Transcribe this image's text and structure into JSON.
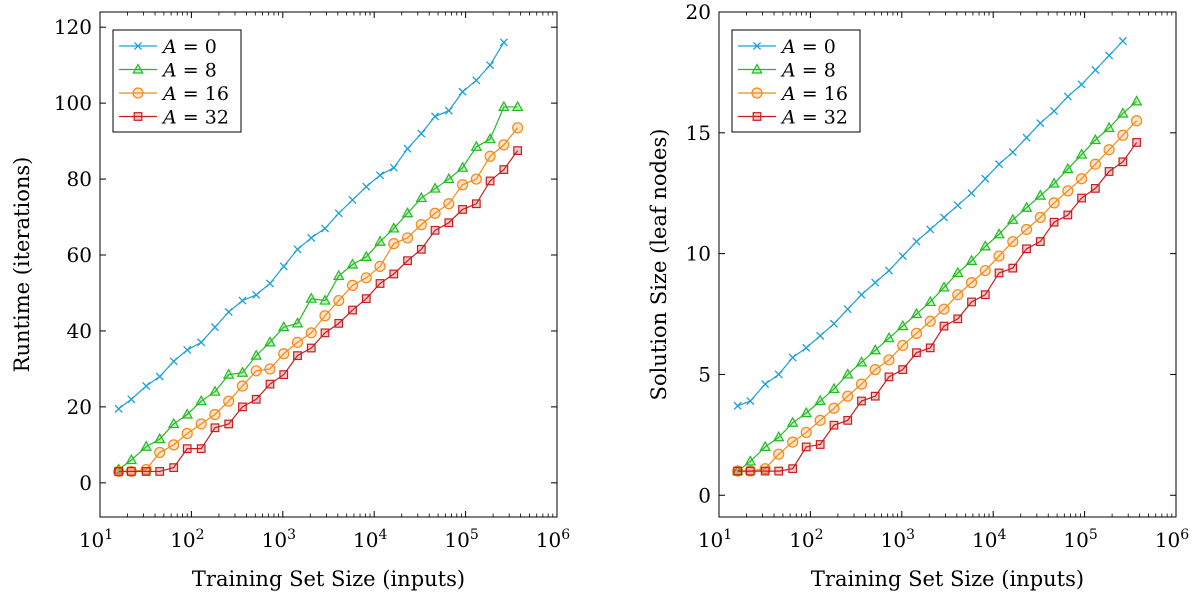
{
  "chart_data": [
    {
      "type": "line",
      "title": "",
      "xlabel": "Training Set Size (inputs)",
      "ylabel": "Runtime (iterations)",
      "xscale": "log",
      "xlim": [
        10,
        1000000
      ],
      "ylim": [
        -9,
        124
      ],
      "xticks": [
        {
          "value": 10,
          "base": "10",
          "exp": "1"
        },
        {
          "value": 100,
          "base": "10",
          "exp": "2"
        },
        {
          "value": 1000,
          "base": "10",
          "exp": "3"
        },
        {
          "value": 10000,
          "base": "10",
          "exp": "4"
        },
        {
          "value": 100000,
          "base": "10",
          "exp": "5"
        },
        {
          "value": 1000000,
          "base": "10",
          "exp": "6"
        }
      ],
      "yticks": [
        {
          "value": 0,
          "label": "0"
        },
        {
          "value": 20,
          "label": "20"
        },
        {
          "value": 40,
          "label": "40"
        },
        {
          "value": 60,
          "label": "60"
        },
        {
          "value": 80,
          "label": "80"
        },
        {
          "value": 100,
          "label": "100"
        },
        {
          "value": 120,
          "label": "120"
        }
      ],
      "grid": false,
      "legend_position": "top-left",
      "series": [
        {
          "name": "A = 0",
          "legend": {
            "var": "A",
            "rest": " = 0"
          },
          "marker": "x",
          "color": "#1aa0d8",
          "x": [
            16,
            22,
            32,
            45,
            64,
            90,
            128,
            181,
            256,
            362,
            512,
            724,
            1024,
            1448,
            2048,
            2896,
            4096,
            5793,
            8192,
            11585,
            16384,
            23170,
            32768,
            46341,
            65536,
            92682,
            131072,
            185364,
            262144
          ],
          "y": [
            19.5,
            22,
            25.5,
            28,
            32,
            35,
            37,
            41,
            45,
            48,
            49.5,
            52.5,
            57,
            61.5,
            64.5,
            67,
            71,
            74.5,
            78,
            81,
            83,
            88,
            92,
            96.5,
            98,
            103,
            106,
            110,
            116
          ]
        },
        {
          "name": "A = 8",
          "legend": {
            "var": "A",
            "rest": " = 8"
          },
          "marker": "triangle",
          "color": "#22bb22",
          "x": [
            16,
            22,
            32,
            45,
            64,
            90,
            128,
            181,
            256,
            362,
            512,
            724,
            1024,
            1448,
            2048,
            2896,
            4096,
            5793,
            8192,
            11585,
            16384,
            23170,
            32768,
            46341,
            65536,
            92682,
            131072,
            185364,
            262144,
            370728
          ],
          "y": [
            3.5,
            6,
            9.5,
            11.5,
            15.5,
            18,
            21.5,
            24,
            28.5,
            29,
            33.5,
            37,
            41,
            42,
            48.5,
            48,
            54.5,
            57.5,
            59.5,
            63.5,
            67,
            71,
            75,
            77.5,
            80,
            83,
            88.5,
            90.5,
            99,
            99
          ]
        },
        {
          "name": "A = 16",
          "legend": {
            "var": "A",
            "rest": " = 16"
          },
          "marker": "circle",
          "color": "#f28a1a",
          "x": [
            16,
            22,
            32,
            45,
            64,
            90,
            128,
            181,
            256,
            362,
            512,
            724,
            1024,
            1448,
            2048,
            2896,
            4096,
            5793,
            8192,
            11585,
            16384,
            23170,
            32768,
            46341,
            65536,
            92682,
            131072,
            185364,
            262144,
            370728
          ],
          "y": [
            3,
            3,
            3.5,
            8,
            10,
            13,
            15.5,
            18,
            21.5,
            25.5,
            29.5,
            30,
            34,
            37,
            39.5,
            44,
            48,
            52,
            54,
            57,
            63,
            64.5,
            68,
            71,
            73.5,
            78.5,
            80,
            86,
            89,
            93.5
          ]
        },
        {
          "name": "A = 32",
          "legend": {
            "var": "A",
            "rest": " = 32"
          },
          "marker": "square",
          "color": "#c81e1e",
          "x": [
            16,
            22,
            32,
            45,
            64,
            90,
            128,
            181,
            256,
            362,
            512,
            724,
            1024,
            1448,
            2048,
            2896,
            4096,
            5793,
            8192,
            11585,
            16384,
            23170,
            32768,
            46341,
            65536,
            92682,
            131072,
            185364,
            262144,
            370728
          ],
          "y": [
            3,
            3,
            3,
            3,
            4,
            9,
            9,
            14.5,
            15.5,
            20,
            22,
            26,
            28.5,
            33.5,
            35.5,
            39.5,
            42,
            45.5,
            48.5,
            52.5,
            55,
            58.5,
            61.5,
            66.5,
            68.5,
            72,
            73.5,
            79.5,
            82.5,
            87.5
          ]
        }
      ]
    },
    {
      "type": "line",
      "title": "",
      "xlabel": "Training Set Size (inputs)",
      "ylabel": "Solution Size (leaf nodes)",
      "xscale": "log",
      "xlim": [
        10,
        1000000
      ],
      "ylim": [
        -0.9,
        20
      ],
      "xticks": [
        {
          "value": 10,
          "base": "10",
          "exp": "1"
        },
        {
          "value": 100,
          "base": "10",
          "exp": "2"
        },
        {
          "value": 1000,
          "base": "10",
          "exp": "3"
        },
        {
          "value": 10000,
          "base": "10",
          "exp": "4"
        },
        {
          "value": 100000,
          "base": "10",
          "exp": "5"
        },
        {
          "value": 1000000,
          "base": "10",
          "exp": "6"
        }
      ],
      "yticks": [
        {
          "value": 0,
          "label": "0"
        },
        {
          "value": 5,
          "label": "5"
        },
        {
          "value": 10,
          "label": "10"
        },
        {
          "value": 15,
          "label": "15"
        },
        {
          "value": 20,
          "label": "20"
        }
      ],
      "grid": false,
      "legend_position": "top-left",
      "series": [
        {
          "name": "A = 0",
          "legend": {
            "var": "A",
            "rest": " = 0"
          },
          "marker": "x",
          "color": "#1aa0d8",
          "x": [
            16,
            22,
            32,
            45,
            64,
            90,
            128,
            181,
            256,
            362,
            512,
            724,
            1024,
            1448,
            2048,
            2896,
            4096,
            5793,
            8192,
            11585,
            16384,
            23170,
            32768,
            46341,
            65536,
            92682,
            131072,
            185364,
            262144
          ],
          "y": [
            3.7,
            3.9,
            4.6,
            5.0,
            5.7,
            6.1,
            6.6,
            7.1,
            7.7,
            8.3,
            8.8,
            9.3,
            9.9,
            10.5,
            11.0,
            11.5,
            12.0,
            12.5,
            13.1,
            13.7,
            14.2,
            14.8,
            15.4,
            15.9,
            16.5,
            17.0,
            17.6,
            18.2,
            18.8
          ]
        },
        {
          "name": "A = 8",
          "legend": {
            "var": "A",
            "rest": " = 8"
          },
          "marker": "triangle",
          "color": "#22bb22",
          "x": [
            16,
            22,
            32,
            45,
            64,
            90,
            128,
            181,
            256,
            362,
            512,
            724,
            1024,
            1448,
            2048,
            2896,
            4096,
            5793,
            8192,
            11585,
            16384,
            23170,
            32768,
            46341,
            65536,
            92682,
            131072,
            185364,
            262144,
            370728
          ],
          "y": [
            1.0,
            1.4,
            2.0,
            2.4,
            3.0,
            3.4,
            3.9,
            4.4,
            5.0,
            5.5,
            6.0,
            6.5,
            7.0,
            7.5,
            8.0,
            8.6,
            9.2,
            9.7,
            10.3,
            10.8,
            11.4,
            11.9,
            12.4,
            12.9,
            13.5,
            14.1,
            14.7,
            15.2,
            15.8,
            16.3
          ]
        },
        {
          "name": "A = 16",
          "legend": {
            "var": "A",
            "rest": " = 16"
          },
          "marker": "circle",
          "color": "#f28a1a",
          "x": [
            16,
            22,
            32,
            45,
            64,
            90,
            128,
            181,
            256,
            362,
            512,
            724,
            1024,
            1448,
            2048,
            2896,
            4096,
            5793,
            8192,
            11585,
            16384,
            23170,
            32768,
            46341,
            65536,
            92682,
            131072,
            185364,
            262144,
            370728
          ],
          "y": [
            1.0,
            1.0,
            1.1,
            1.7,
            2.2,
            2.6,
            3.1,
            3.6,
            4.1,
            4.6,
            5.2,
            5.6,
            6.2,
            6.7,
            7.2,
            7.7,
            8.3,
            8.8,
            9.3,
            9.9,
            10.5,
            11.0,
            11.5,
            12.1,
            12.6,
            13.1,
            13.7,
            14.3,
            14.9,
            15.5
          ]
        },
        {
          "name": "A = 32",
          "legend": {
            "var": "A",
            "rest": " = 32"
          },
          "marker": "square",
          "color": "#c81e1e",
          "x": [
            16,
            22,
            32,
            45,
            64,
            90,
            128,
            181,
            256,
            362,
            512,
            724,
            1024,
            1448,
            2048,
            2896,
            4096,
            5793,
            8192,
            11585,
            16384,
            23170,
            32768,
            46341,
            65536,
            92682,
            131072,
            185364,
            262144,
            370728
          ],
          "y": [
            1.0,
            1.0,
            1.0,
            1.0,
            1.1,
            2.0,
            2.1,
            2.9,
            3.1,
            3.9,
            4.1,
            4.9,
            5.2,
            5.9,
            6.1,
            7.0,
            7.3,
            8.0,
            8.3,
            9.2,
            9.4,
            10.2,
            10.5,
            11.3,
            11.6,
            12.3,
            12.7,
            13.4,
            13.8,
            14.6
          ]
        }
      ]
    }
  ]
}
